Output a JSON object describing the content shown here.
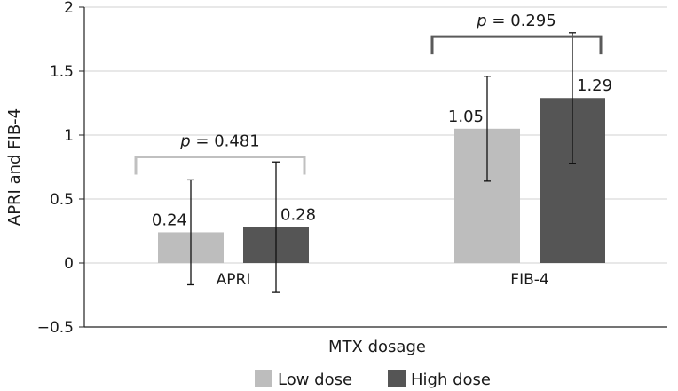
{
  "chart_data": {
    "type": "bar",
    "title": "",
    "xlabel": "MTX dosage",
    "ylabel": "APRI and FIB-4",
    "ylim": [
      -0.5,
      2
    ],
    "yticks": [
      {
        "value": 2,
        "label": "2"
      },
      {
        "value": 1.5,
        "label": "1.5"
      },
      {
        "value": 1,
        "label": "1"
      },
      {
        "value": 0.5,
        "label": "0.5"
      },
      {
        "value": 0,
        "label": "0"
      },
      {
        "value": -0.5,
        "label": "−0.5"
      }
    ],
    "grid": true,
    "categories": [
      "APRI",
      "FIB-4"
    ],
    "series": [
      {
        "name": "Low dose",
        "color": "#bdbdbd",
        "values": [
          0.24,
          1.05
        ],
        "labels": [
          "0.24",
          "1.05"
        ],
        "error_low": [
          -0.17,
          0.64
        ],
        "error_high": [
          0.65,
          1.46
        ]
      },
      {
        "name": "High dose",
        "color": "#555555",
        "values": [
          0.28,
          1.29
        ],
        "labels": [
          "0.28",
          "1.29"
        ],
        "error_low": [
          -0.23,
          0.78
        ],
        "error_high": [
          0.79,
          1.8
        ]
      }
    ],
    "annotations": [
      {
        "category": "APRI",
        "p_symbol": "p",
        "p_value": " = 0.481",
        "bracket_value": 0.83,
        "bracket_color": "#c0c0c0"
      },
      {
        "category": "FIB-4",
        "p_symbol": "p",
        "p_value": " = 0.295",
        "bracket_value": 1.77,
        "bracket_color": "#5a5a5a"
      }
    ],
    "legend": {
      "position": "bottom"
    }
  }
}
